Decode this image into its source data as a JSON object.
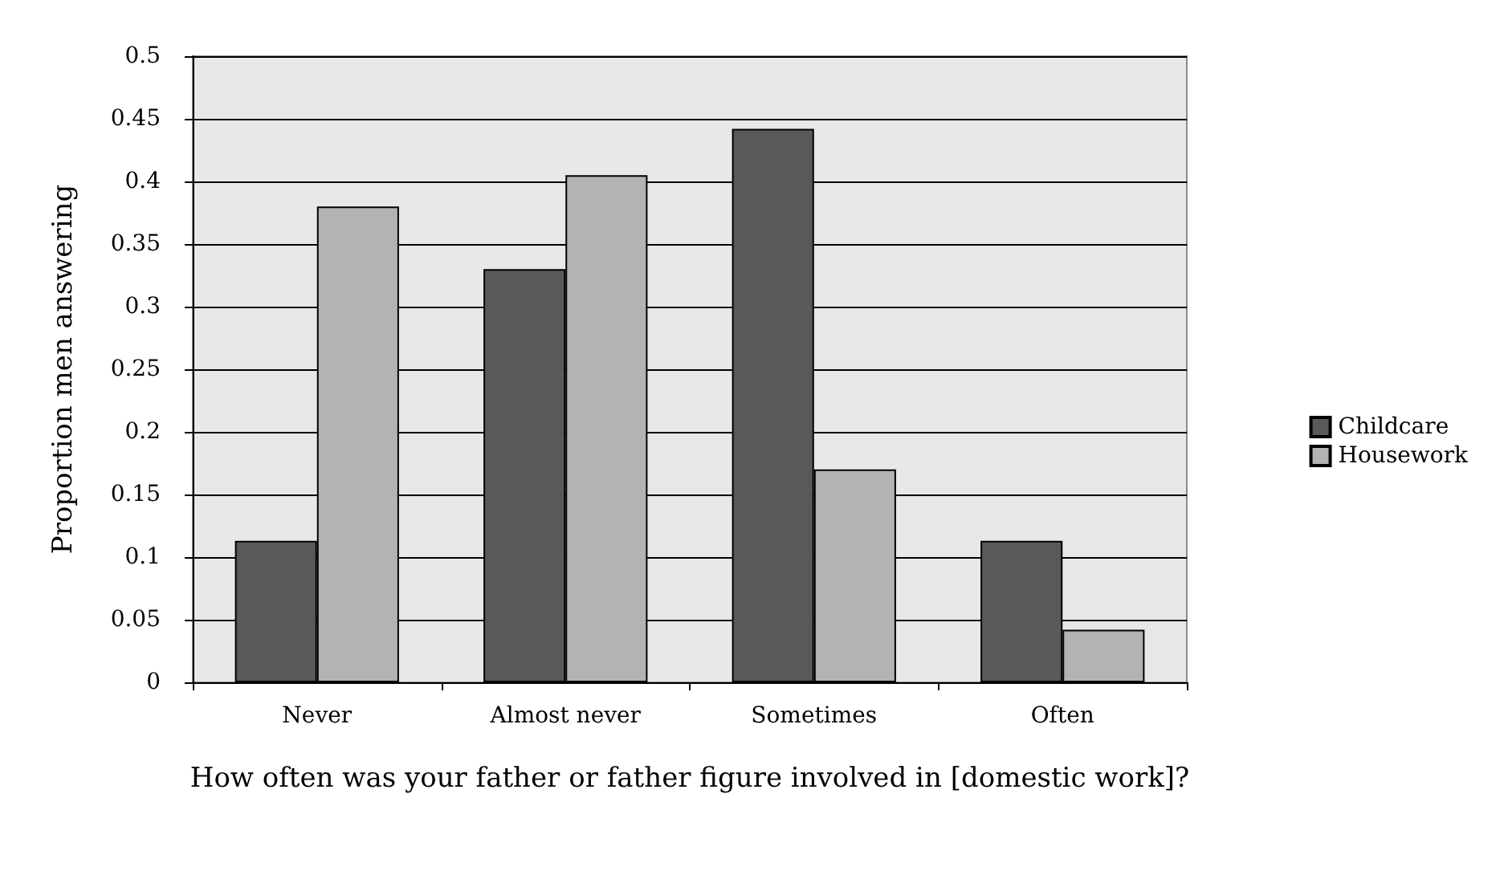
{
  "chart_data": {
    "type": "bar",
    "xlabel": "How often was your father or father figure involved in [domestic work]?",
    "ylabel": "Proportion men answering",
    "categories": [
      "Never",
      "Almost never",
      "Sometimes",
      "Often"
    ],
    "series": [
      {
        "name": "Childcare",
        "color": "#595959",
        "values": [
          0.113,
          0.33,
          0.442,
          0.113
        ]
      },
      {
        "name": "Housework",
        "color": "#b3b3b3",
        "values": [
          0.38,
          0.405,
          0.17,
          0.042
        ]
      }
    ],
    "ylim": [
      0,
      0.5
    ],
    "yticks": [
      0,
      0.05,
      0.1,
      0.15,
      0.2,
      0.25,
      0.3,
      0.35,
      0.4,
      0.45,
      0.5
    ],
    "grid": "y",
    "legend": "right"
  }
}
